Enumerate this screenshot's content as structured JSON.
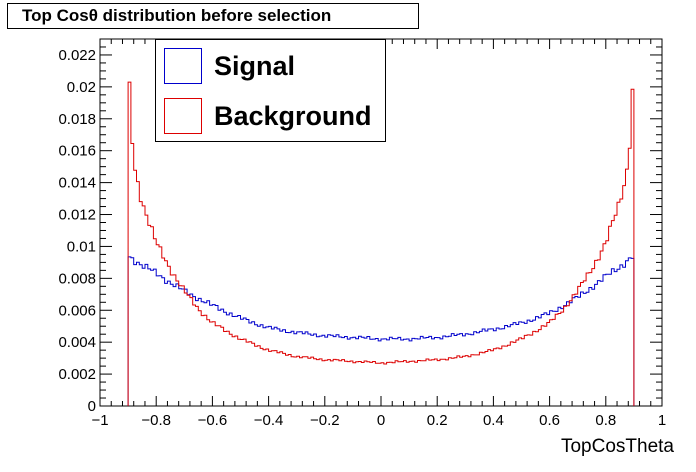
{
  "chart_data": {
    "type": "line",
    "title": "Top Cosθ distribution before selection",
    "xlabel": "TopCosTheta",
    "ylabel": "",
    "xlim": [
      -1,
      1
    ],
    "ylim": [
      0,
      0.023
    ],
    "x_ticks": [
      -1,
      -0.8,
      -0.6,
      -0.4,
      -0.2,
      0,
      0.2,
      0.4,
      0.6,
      0.8,
      1
    ],
    "x_tick_labels": [
      "−1",
      "−0.8",
      "−0.6",
      "−0.4",
      "−0.2",
      "0",
      "0.2",
      "0.4",
      "0.6",
      "0.8",
      "1"
    ],
    "y_ticks": [
      0,
      0.002,
      0.004,
      0.006,
      0.008,
      0.01,
      0.012,
      0.014,
      0.016,
      0.018,
      0.02,
      0.022
    ],
    "y_tick_labels": [
      "0",
      "0.002",
      "0.004",
      "0.006",
      "0.008",
      "0.01",
      "0.012",
      "0.014",
      "0.016",
      "0.018",
      "0.02",
      "0.022"
    ],
    "grid": false,
    "legend_position": "top-left",
    "histogram_range": [
      -0.9,
      0.9
    ],
    "series": [
      {
        "name": "Signal",
        "color": "#0000cc",
        "x": [
          -0.9,
          -0.8,
          -0.7,
          -0.6,
          -0.5,
          -0.4,
          -0.3,
          -0.2,
          -0.1,
          0,
          0.1,
          0.2,
          0.3,
          0.4,
          0.5,
          0.6,
          0.7,
          0.8,
          0.9
        ],
        "y": [
          0.0094,
          0.0083,
          0.0072,
          0.0063,
          0.0055,
          0.0049,
          0.0046,
          0.0044,
          0.0043,
          0.0042,
          0.0042,
          0.0043,
          0.0045,
          0.0048,
          0.0052,
          0.0058,
          0.0068,
          0.0081,
          0.0094
        ]
      },
      {
        "name": "Background",
        "color": "#dd0000",
        "x": [
          -0.9,
          -0.89,
          -0.875,
          -0.85,
          -0.8,
          -0.75,
          -0.7,
          -0.65,
          -0.6,
          -0.5,
          -0.4,
          -0.3,
          -0.2,
          -0.1,
          0,
          0.1,
          0.2,
          0.3,
          0.4,
          0.5,
          0.6,
          0.65,
          0.7,
          0.75,
          0.8,
          0.85,
          0.875,
          0.89,
          0.9
        ],
        "y": [
          0.022,
          0.0175,
          0.0148,
          0.0128,
          0.0102,
          0.0086,
          0.0072,
          0.0061,
          0.0052,
          0.0042,
          0.0035,
          0.0031,
          0.0029,
          0.0028,
          0.0027,
          0.0028,
          0.0029,
          0.0031,
          0.0035,
          0.0042,
          0.0052,
          0.0061,
          0.0072,
          0.0086,
          0.0102,
          0.0128,
          0.0148,
          0.0175,
          0.022
        ]
      }
    ]
  }
}
